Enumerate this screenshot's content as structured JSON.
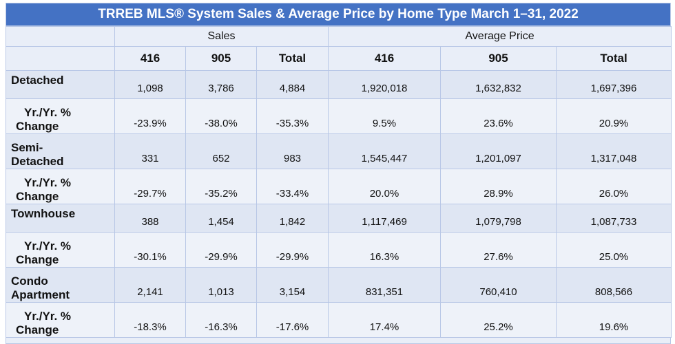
{
  "title": "TRREB MLS® System Sales & Average Price by Home Type March 1–31, 2022",
  "groups": {
    "sales": "Sales",
    "avg_price": "Average Price"
  },
  "columns": [
    "416",
    "905",
    "Total",
    "416",
    "905",
    "Total"
  ],
  "rows": [
    {
      "label": "Detached",
      "values": [
        "1,098",
        "3,786",
        "4,884",
        "1,920,018",
        "1,632,832",
        "1,697,396"
      ]
    },
    {
      "label_line1": "Yr./Yr. %",
      "label_line2": "Change",
      "values": [
        "-23.9%",
        "-38.0%",
        "-35.3%",
        "9.5%",
        "23.6%",
        "20.9%"
      ]
    },
    {
      "label_line1": "Semi-",
      "label_line2": "Detached",
      "values": [
        "331",
        "652",
        "983",
        "1,545,447",
        "1,201,097",
        "1,317,048"
      ]
    },
    {
      "label_line1": "Yr./Yr. %",
      "label_line2": "Change",
      "values": [
        "-29.7%",
        "-35.2%",
        "-33.4%",
        "20.0%",
        "28.9%",
        "26.0%"
      ]
    },
    {
      "label": "Townhouse",
      "values": [
        "388",
        "1,454",
        "1,842",
        "1,117,469",
        "1,079,798",
        "1,087,733"
      ]
    },
    {
      "label_line1": "Yr./Yr. %",
      "label_line2": "Change",
      "values": [
        "-30.1%",
        "-29.9%",
        "-29.9%",
        "16.3%",
        "27.6%",
        "25.0%"
      ]
    },
    {
      "label_line1": "Condo",
      "label_line2": "Apartment",
      "values": [
        "2,141",
        "1,013",
        "3,154",
        "831,351",
        "760,410",
        "808,566"
      ]
    },
    {
      "label_line1": "Yr./Yr. %",
      "label_line2": "Change",
      "values": [
        "-18.3%",
        "-16.3%",
        "-17.6%",
        "17.4%",
        "25.2%",
        "19.6%"
      ]
    }
  ]
}
